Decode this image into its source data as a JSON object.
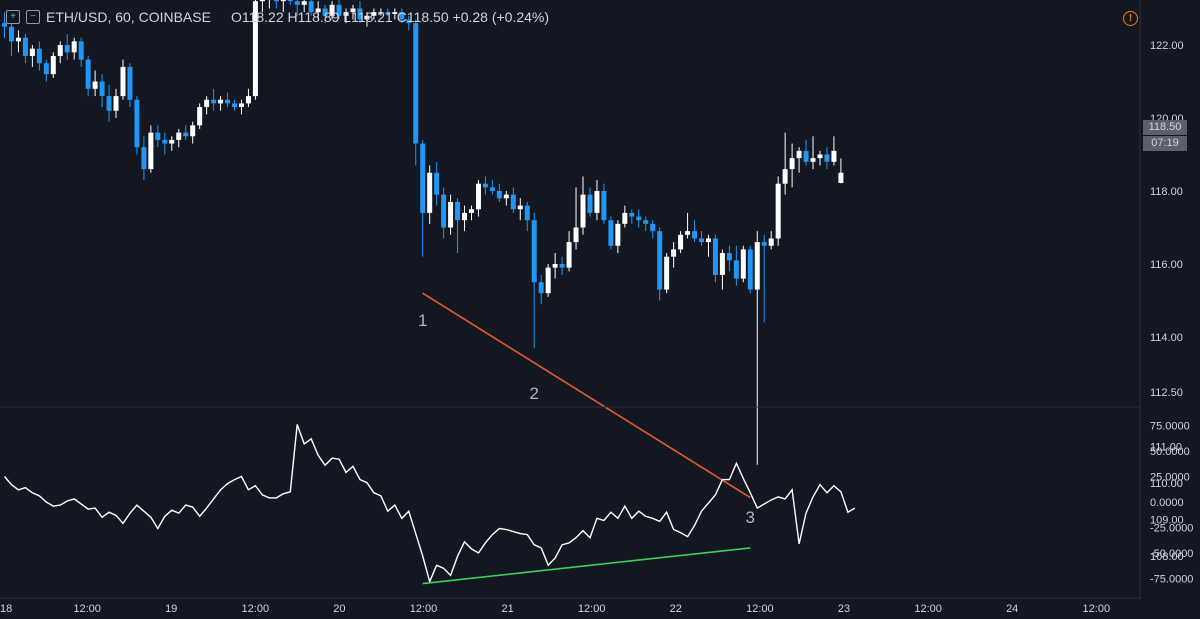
{
  "header": {
    "symbol": "ETH/USD, 60, COINBASE",
    "ohlc": "O118.22 H118.89 L118.21 C118.50 +0.28 (+0.24%)"
  },
  "price_tag": {
    "price": "118.50",
    "countdown": "07:19"
  },
  "colors": {
    "up": "#ffffff",
    "down": "#2196f3",
    "bg": "#131722",
    "trend_price": "#e65c28",
    "trend_rsi": "#3ad05a"
  },
  "chart_data": [
    {
      "type": "candlestick",
      "title": "ETH/USD, 60, COINBASE",
      "ylim": [
        107.3,
        123.4
      ],
      "yticks": [
        108.0,
        109.0,
        110.0,
        111.0,
        112.5,
        114.0,
        116.0,
        118.0,
        120.0,
        122.0
      ],
      "ytick_labels": [
        "108.00",
        "109.00",
        "110.00",
        "111.00",
        "112.50",
        "114.00",
        "116.00",
        "118.00",
        "120.00",
        "122.00"
      ],
      "x_labels": [
        "18",
        "12:00",
        "19",
        "12:00",
        "20",
        "12:00",
        "21",
        "12:00",
        "22",
        "12:00",
        "23",
        "12:00",
        "24",
        "12:00"
      ],
      "grid": false,
      "candles": [
        [
          122.6,
          122.9,
          122.2,
          122.5
        ],
        [
          122.5,
          122.6,
          121.7,
          122.1
        ],
        [
          122.1,
          122.4,
          121.8,
          122.2
        ],
        [
          122.2,
          122.3,
          121.5,
          121.7
        ],
        [
          121.7,
          122.0,
          121.4,
          121.9
        ],
        [
          121.9,
          122.1,
          121.3,
          121.5
        ],
        [
          121.5,
          121.6,
          121.0,
          121.2
        ],
        [
          121.2,
          121.8,
          121.1,
          121.7
        ],
        [
          121.7,
          122.1,
          121.5,
          122.0
        ],
        [
          122.0,
          122.3,
          121.6,
          121.8
        ],
        [
          121.8,
          122.2,
          121.6,
          122.1
        ],
        [
          122.1,
          122.2,
          121.4,
          121.6
        ],
        [
          121.6,
          121.7,
          120.6,
          120.8
        ],
        [
          120.8,
          121.3,
          120.6,
          121.0
        ],
        [
          121.0,
          121.2,
          120.3,
          120.6
        ],
        [
          120.6,
          120.9,
          119.9,
          120.2
        ],
        [
          120.2,
          120.8,
          120.0,
          120.6
        ],
        [
          120.6,
          121.6,
          120.5,
          121.4
        ],
        [
          121.4,
          121.5,
          120.3,
          120.5
        ],
        [
          120.5,
          120.6,
          119.0,
          119.2
        ],
        [
          119.2,
          119.5,
          118.3,
          118.6
        ],
        [
          118.6,
          119.8,
          118.5,
          119.6
        ],
        [
          119.6,
          119.8,
          119.2,
          119.4
        ],
        [
          119.4,
          119.6,
          119.0,
          119.3
        ],
        [
          119.3,
          119.5,
          119.1,
          119.4
        ],
        [
          119.4,
          119.7,
          119.2,
          119.6
        ],
        [
          119.6,
          119.8,
          119.4,
          119.5
        ],
        [
          119.5,
          119.9,
          119.3,
          119.8
        ],
        [
          119.8,
          120.4,
          119.7,
          120.3
        ],
        [
          120.3,
          120.6,
          120.1,
          120.5
        ],
        [
          120.5,
          120.8,
          120.2,
          120.4
        ],
        [
          120.4,
          120.6,
          120.2,
          120.5
        ],
        [
          120.5,
          120.7,
          120.3,
          120.4
        ],
        [
          120.4,
          120.5,
          120.2,
          120.3
        ],
        [
          120.3,
          120.5,
          120.1,
          120.4
        ],
        [
          120.4,
          120.8,
          120.3,
          120.6
        ],
        [
          120.6,
          123.4,
          120.5,
          123.2
        ],
        [
          123.2,
          123.6,
          122.9,
          123.3
        ],
        [
          123.3,
          123.5,
          123.0,
          123.4
        ],
        [
          123.4,
          123.6,
          123.0,
          123.2
        ],
        [
          123.2,
          123.4,
          122.9,
          123.3
        ],
        [
          123.3,
          123.5,
          123.1,
          123.2
        ],
        [
          123.2,
          123.4,
          122.8,
          123.1
        ],
        [
          123.1,
          123.3,
          122.9,
          123.2
        ],
        [
          123.2,
          123.4,
          122.8,
          122.9
        ],
        [
          122.9,
          123.2,
          122.7,
          123.0
        ],
        [
          123.0,
          123.1,
          122.6,
          122.8
        ],
        [
          122.8,
          123.2,
          122.7,
          123.1
        ],
        [
          123.1,
          123.3,
          122.7,
          122.8
        ],
        [
          122.8,
          123.0,
          122.6,
          122.9
        ],
        [
          122.9,
          123.1,
          122.7,
          123.0
        ],
        [
          123.0,
          123.2,
          122.6,
          122.7
        ],
        [
          122.7,
          122.9,
          122.5,
          122.8
        ],
        [
          122.8,
          123.0,
          122.7,
          122.9
        ],
        [
          122.9,
          123.0,
          122.8,
          122.9
        ],
        [
          122.9,
          123.0,
          122.8,
          122.85
        ],
        [
          122.85,
          123.0,
          122.7,
          122.9
        ],
        [
          122.9,
          123.0,
          122.6,
          122.7
        ],
        [
          122.7,
          122.8,
          122.4,
          122.6
        ],
        [
          122.6,
          122.7,
          118.7,
          119.3
        ],
        [
          119.3,
          119.4,
          116.2,
          117.4
        ],
        [
          117.4,
          118.7,
          117.1,
          118.5
        ],
        [
          118.5,
          118.8,
          117.6,
          117.9
        ],
        [
          117.9,
          118.1,
          116.7,
          117.0
        ],
        [
          117.0,
          117.9,
          116.8,
          117.7
        ],
        [
          117.7,
          117.8,
          116.3,
          117.2
        ],
        [
          117.2,
          117.6,
          116.9,
          117.4
        ],
        [
          117.4,
          117.6,
          117.2,
          117.5
        ],
        [
          117.5,
          118.3,
          117.3,
          118.2
        ],
        [
          118.2,
          118.4,
          117.9,
          118.1
        ],
        [
          118.1,
          118.3,
          117.9,
          118.0
        ],
        [
          118.0,
          118.2,
          117.7,
          117.8
        ],
        [
          117.8,
          118.0,
          117.6,
          117.9
        ],
        [
          117.9,
          118.1,
          117.4,
          117.5
        ],
        [
          117.5,
          117.8,
          117.2,
          117.6
        ],
        [
          117.6,
          117.7,
          116.9,
          117.2
        ],
        [
          117.2,
          117.4,
          113.7,
          115.5
        ],
        [
          115.5,
          115.7,
          114.9,
          115.2
        ],
        [
          115.2,
          116.0,
          115.1,
          115.9
        ],
        [
          115.9,
          116.3,
          115.6,
          116.0
        ],
        [
          116.0,
          116.2,
          115.7,
          115.9
        ],
        [
          115.9,
          116.9,
          115.8,
          116.6
        ],
        [
          116.6,
          118.1,
          116.4,
          117.0
        ],
        [
          117.0,
          118.4,
          116.8,
          117.9
        ],
        [
          117.9,
          118.1,
          117.3,
          117.4
        ],
        [
          117.4,
          118.3,
          117.2,
          118.0
        ],
        [
          118.0,
          118.2,
          117.1,
          117.2
        ],
        [
          117.2,
          117.3,
          116.4,
          116.5
        ],
        [
          116.5,
          117.2,
          116.3,
          117.1
        ],
        [
          117.1,
          117.6,
          117.0,
          117.4
        ],
        [
          117.4,
          117.5,
          117.1,
          117.3
        ],
        [
          117.3,
          117.5,
          117.0,
          117.2
        ],
        [
          117.2,
          117.3,
          116.9,
          117.1
        ],
        [
          117.1,
          117.2,
          116.7,
          116.9
        ],
        [
          116.9,
          117.0,
          115.0,
          115.3
        ],
        [
          115.3,
          116.3,
          115.2,
          116.2
        ],
        [
          116.2,
          116.6,
          115.9,
          116.4
        ],
        [
          116.4,
          116.9,
          116.3,
          116.8
        ],
        [
          116.8,
          117.4,
          116.7,
          116.9
        ],
        [
          116.9,
          117.2,
          116.6,
          116.7
        ],
        [
          116.7,
          116.9,
          116.5,
          116.6
        ],
        [
          116.6,
          116.8,
          116.2,
          116.7
        ],
        [
          116.7,
          116.8,
          115.5,
          115.7
        ],
        [
          115.7,
          116.4,
          115.3,
          116.3
        ],
        [
          116.3,
          116.5,
          115.8,
          116.1
        ],
        [
          116.1,
          116.5,
          115.4,
          115.6
        ],
        [
          115.6,
          116.5,
          115.5,
          116.4
        ],
        [
          116.4,
          116.5,
          115.2,
          115.3
        ],
        [
          115.3,
          116.9,
          110.5,
          116.6
        ],
        [
          116.6,
          116.8,
          114.4,
          116.5
        ],
        [
          116.5,
          116.9,
          116.4,
          116.7
        ],
        [
          116.7,
          118.4,
          116.5,
          118.2
        ],
        [
          118.2,
          119.6,
          117.9,
          118.6
        ],
        [
          118.6,
          119.3,
          118.1,
          118.9
        ],
        [
          118.9,
          119.2,
          118.5,
          119.1
        ],
        [
          119.1,
          119.4,
          118.7,
          118.8
        ],
        [
          118.8,
          119.5,
          118.6,
          118.9
        ],
        [
          118.9,
          119.1,
          118.7,
          119.0
        ],
        [
          119.0,
          119.2,
          118.6,
          118.8
        ],
        [
          118.8,
          119.5,
          118.7,
          119.1
        ],
        [
          118.22,
          118.89,
          118.21,
          118.5
        ]
      ],
      "trendline": {
        "points": [
          [
            60,
            115.2
          ],
          [
            107,
            109.6
          ]
        ]
      },
      "annotations": [
        {
          "text": "1",
          "x": 60,
          "y": 114.3
        },
        {
          "text": "2",
          "x": 76,
          "y": 112.3
        },
        {
          "text": "3",
          "x": 107,
          "y": 108.9
        }
      ]
    },
    {
      "type": "line",
      "ylim": [
        -85,
        85
      ],
      "yticks": [
        75,
        50,
        25,
        0,
        -25,
        -50,
        -75
      ],
      "ytick_labels": [
        "75.0000",
        "50.0000",
        "25.0000",
        "0.0000",
        "-25.0000",
        "-50.0000",
        "-75.0000"
      ],
      "series": [
        {
          "values": [
            25,
            17,
            12,
            14,
            9,
            6,
            0,
            -4,
            -3,
            1,
            3,
            -2,
            -7,
            -6,
            -15,
            -10,
            -13,
            -21,
            -11,
            -3,
            -9,
            -15,
            -26,
            -14,
            -8,
            -11,
            -3,
            -5,
            -14,
            -6,
            3,
            12,
            18,
            22,
            25,
            12,
            16,
            7,
            4,
            4,
            8,
            10,
            76,
            57,
            62,
            46,
            36,
            43,
            42,
            29,
            35,
            22,
            19,
            9,
            6,
            -9,
            -3,
            -16,
            -9,
            -31,
            -53,
            -78,
            -62,
            -65,
            -72,
            -53,
            -39,
            -46,
            -50,
            -40,
            -32,
            -26,
            -27,
            -29,
            -31,
            -32,
            -42,
            -45,
            -62,
            -55,
            -42,
            -40,
            -35,
            -28,
            -35,
            -16,
            -18,
            -10,
            -16,
            -4,
            -16,
            -9,
            -14,
            -16,
            -19,
            -10,
            -27,
            -30,
            -34,
            -23,
            -9,
            -1,
            7,
            22,
            22,
            38,
            23,
            9,
            -6,
            -2,
            2,
            5,
            3,
            12,
            -41,
            -11,
            5,
            17,
            9,
            16,
            10,
            -10,
            -6
          ]
        }
      ],
      "trendline": {
        "points": [
          [
            60,
            -80
          ],
          [
            107,
            -45
          ]
        ]
      }
    }
  ]
}
